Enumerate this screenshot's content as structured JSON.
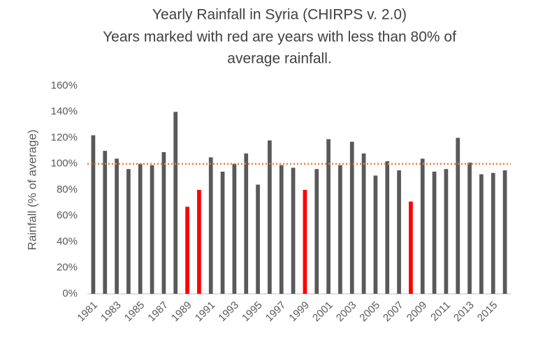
{
  "chart_data": {
    "type": "bar",
    "title": [
      "Yearly Rainfall in Syria (CHIRPS v. 2.0)",
      "Years marked with red are years with less than 80% of",
      "average rainfall."
    ],
    "y_label": "Rainfall (% of average)",
    "categories": [
      "1981",
      null,
      "1983",
      null,
      "1985",
      null,
      "1987",
      null,
      "1989",
      null,
      "1991",
      null,
      "1993",
      null,
      "1995",
      null,
      "1997",
      null,
      "1999",
      null,
      "2001",
      null,
      "2003",
      null,
      "2005",
      null,
      "2007",
      null,
      "2009",
      null,
      "2011",
      null,
      "2013",
      null,
      "2015",
      null
    ],
    "values": [
      122,
      110,
      104,
      96,
      100,
      99,
      109,
      140,
      67,
      80,
      105,
      94,
      100,
      108,
      84,
      118,
      99,
      97,
      80,
      96,
      119,
      99,
      117,
      108,
      91,
      102,
      95,
      71,
      104,
      94,
      96,
      120,
      101,
      92,
      93,
      95
    ],
    "colors": [
      "#595959",
      "#595959",
      "#595959",
      "#595959",
      "#595959",
      "#595959",
      "#595959",
      "#595959",
      "#ff0000",
      "#ff0000",
      "#595959",
      "#595959",
      "#595959",
      "#595959",
      "#595959",
      "#595959",
      "#595959",
      "#595959",
      "#ff0000",
      "#595959",
      "#595959",
      "#595959",
      "#595959",
      "#595959",
      "#595959",
      "#595959",
      "#595959",
      "#ff0000",
      "#595959",
      "#595959",
      "#595959",
      "#595959",
      "#595959",
      "#595959",
      "#595959",
      "#595959"
    ],
    "reference_line": {
      "value": 100,
      "color": "#ed7d31"
    },
    "ylim": [
      0,
      160
    ],
    "yticks": [
      {
        "value": 0,
        "label": "0%"
      },
      {
        "value": 20,
        "label": "20%"
      },
      {
        "value": 40,
        "label": "40%"
      },
      {
        "value": 60,
        "label": "60%"
      },
      {
        "value": 80,
        "label": "80%"
      },
      {
        "value": 100,
        "label": "100%"
      },
      {
        "value": 120,
        "label": "120%"
      },
      {
        "value": 140,
        "label": "140%"
      },
      {
        "value": 160,
        "label": "160%"
      }
    ],
    "grid": false
  }
}
